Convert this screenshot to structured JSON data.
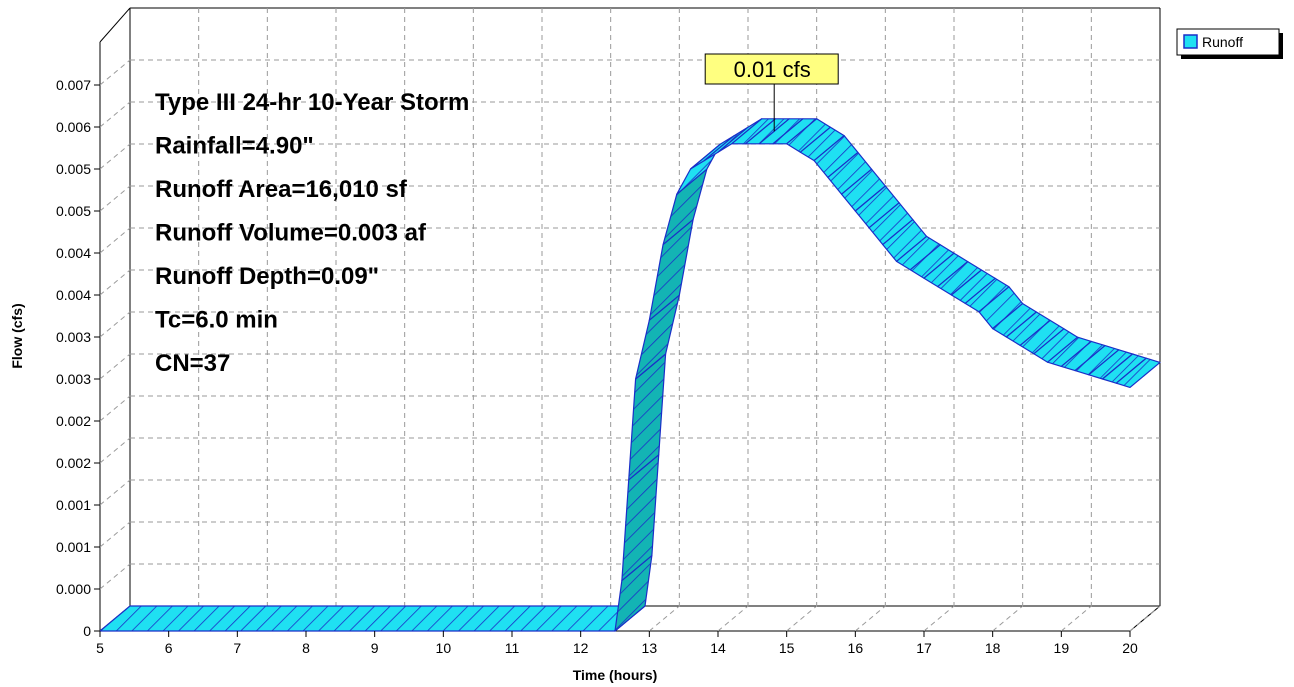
{
  "chart_data": {
    "type": "area",
    "xlabel": "Time  (hours)",
    "ylabel": "Flow  (cfs)",
    "xlim": [
      5,
      20
    ],
    "ylim": [
      0,
      0.0075
    ],
    "grid": true,
    "legend_position": "top-right",
    "x_ticks": [
      "5",
      "6",
      "7",
      "8",
      "9",
      "10",
      "11",
      "12",
      "13",
      "14",
      "15",
      "16",
      "17",
      "18",
      "19",
      "20"
    ],
    "y_ticks": [
      {
        "value": 0.0,
        "label": "0"
      },
      {
        "value": 0.0005,
        "label": "0.000"
      },
      {
        "value": 0.001,
        "label": "0.001"
      },
      {
        "value": 0.0015,
        "label": "0.001"
      },
      {
        "value": 0.002,
        "label": "0.002"
      },
      {
        "value": 0.0025,
        "label": "0.002"
      },
      {
        "value": 0.003,
        "label": "0.003"
      },
      {
        "value": 0.0035,
        "label": "0.003"
      },
      {
        "value": 0.004,
        "label": "0.004"
      },
      {
        "value": 0.0045,
        "label": "0.004"
      },
      {
        "value": 0.005,
        "label": "0.005"
      },
      {
        "value": 0.0055,
        "label": "0.005"
      },
      {
        "value": 0.006,
        "label": "0.006"
      },
      {
        "value": 0.0065,
        "label": "0.007"
      }
    ],
    "series": [
      {
        "name": "Runoff",
        "color": "#1fe0f2",
        "x": [
          5.0,
          12.5,
          12.6,
          12.7,
          12.8,
          13.0,
          13.2,
          13.4,
          13.6,
          13.8,
          14.0,
          14.2,
          14.4,
          14.6,
          14.8,
          15.0,
          15.2,
          15.4,
          15.6,
          15.8,
          16.0,
          16.2,
          16.4,
          16.6,
          16.8,
          17.0,
          17.2,
          17.4,
          17.6,
          17.8,
          18.0,
          18.2,
          18.4,
          18.6,
          18.8,
          19.0,
          19.2,
          19.4,
          19.6,
          19.8,
          20.0
        ],
        "y": [
          0.0,
          0.0,
          0.0006,
          0.0018,
          0.003,
          0.0037,
          0.0046,
          0.0052,
          0.0055,
          0.0056,
          0.0057,
          0.0058,
          0.0058,
          0.0058,
          0.0058,
          0.0058,
          0.0057,
          0.0056,
          0.0054,
          0.0052,
          0.005,
          0.0048,
          0.0046,
          0.0044,
          0.0043,
          0.0042,
          0.0041,
          0.004,
          0.0039,
          0.0038,
          0.0036,
          0.0035,
          0.0034,
          0.0033,
          0.0032,
          0.00315,
          0.0031,
          0.00305,
          0.003,
          0.00295,
          0.0029
        ]
      }
    ],
    "peak_label": "0.01 cfs",
    "peak_x": 14.6,
    "annotations": [
      "Type III 24-hr 10-Year Storm",
      "Rainfall=4.90\"",
      "Runoff Area=16,010 sf",
      "Runoff Volume=0.003 af",
      "Runoff Depth=0.09\"",
      "Tc=6.0 min",
      "CN=37"
    ]
  }
}
